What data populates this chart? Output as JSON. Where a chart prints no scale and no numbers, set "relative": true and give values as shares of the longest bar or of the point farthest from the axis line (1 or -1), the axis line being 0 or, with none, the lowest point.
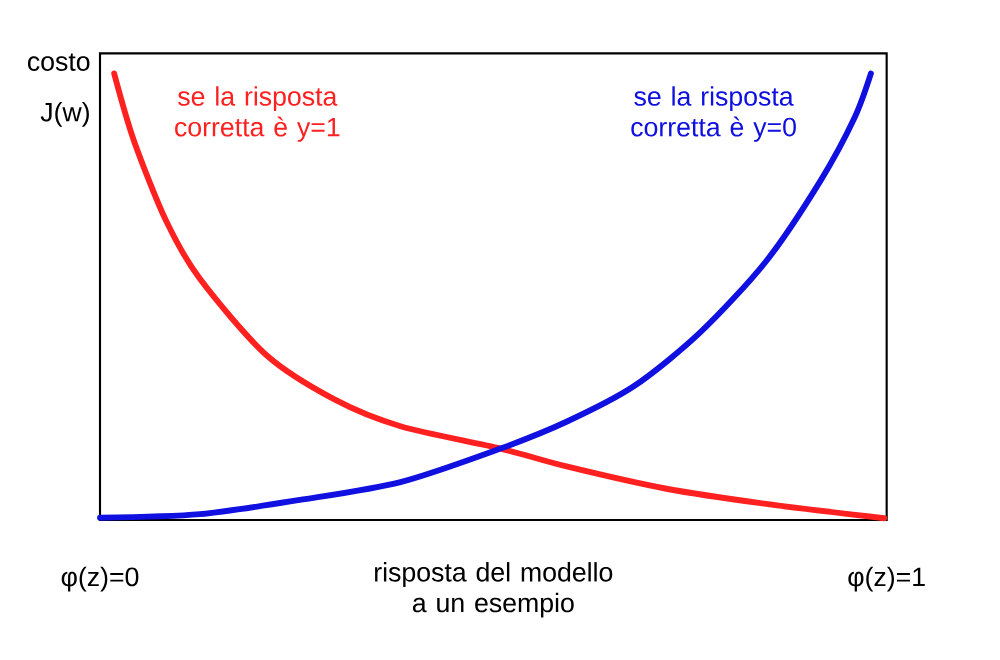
{
  "chart_data": {
    "type": "line",
    "relative": true,
    "ylabel": "costo J(w)",
    "xlabel": "risposta del modello a un esempio",
    "xlim": [
      0,
      1
    ],
    "xticks": [
      {
        "value": 0,
        "label": "φ(z)=0"
      },
      {
        "value": 1,
        "label": "φ(z)=1"
      }
    ],
    "marker": "none",
    "line_style": "solid",
    "legend": false,
    "series": [
      {
        "name": "se la risposta corretta è y=1",
        "color": "#ff2020",
        "x": [
          0.018,
          0.043,
          0.084,
          0.127,
          0.211,
          0.298,
          0.382,
          0.509,
          0.593,
          0.72,
          0.847,
          0.997
        ],
        "values": [
          1.0,
          0.85,
          0.67,
          0.54,
          0.37,
          0.27,
          0.21,
          0.16,
          0.12,
          0.07,
          0.036,
          0.004
        ]
      },
      {
        "name": "se la risposta corretta è y=0",
        "color": "#1010e0",
        "x": [
          0.0,
          0.127,
          0.254,
          0.382,
          0.509,
          0.593,
          0.679,
          0.763,
          0.847,
          0.916,
          0.959,
          0.98
        ],
        "values": [
          0.005,
          0.013,
          0.045,
          0.085,
          0.16,
          0.22,
          0.3,
          0.42,
          0.58,
          0.76,
          0.9,
          1.0
        ]
      }
    ]
  }
}
